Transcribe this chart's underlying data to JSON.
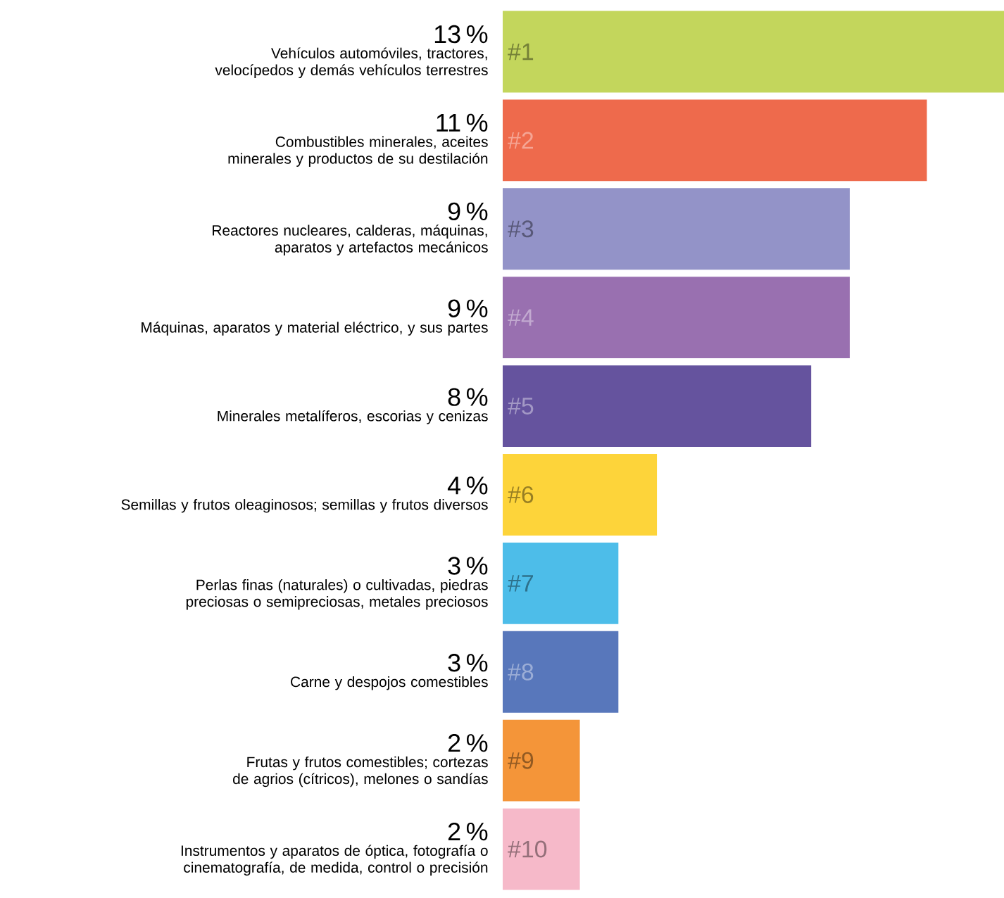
{
  "chart_data": {
    "type": "bar",
    "orientation": "horizontal",
    "categories": [
      "Vehículos automóviles, tractores, velocípedos y demás vehículos terrestres",
      "Combustibles minerales, aceites minerales y productos de su destilación",
      "Reactores nucleares, calderas, máquinas, aparatos y artefactos mecánicos",
      "Máquinas, aparatos y material eléctrico, y sus partes",
      "Minerales metalíferos, escorias y cenizas",
      "Semillas y frutos oleaginosos; semillas y frutos diversos",
      "Perlas finas (naturales) o cultivadas, piedras preciosas o semipreciosas, metales preciosos",
      "Carne y despojos comestibles",
      "Frutas y frutos comestibles; cortezas de agrios (cítricos), melones o sandías",
      "Instrumentos y aparatos de óptica, fotografía o cinematografía, de medida, control o precisión"
    ],
    "values": [
      13,
      11,
      9,
      9,
      8,
      4,
      3,
      3,
      2,
      2
    ],
    "value_labels": [
      "13 %",
      "11 %",
      "9 %",
      "9 %",
      "8 %",
      "4 %",
      "3 %",
      "3 %",
      "2 %",
      "2 %"
    ],
    "colors": [
      "#c3d65c",
      "#ee6a4c",
      "#9393c8",
      "#9970b0",
      "#65539e",
      "#fdd43a",
      "#4dbde9",
      "#5877bb",
      "#f49539",
      "#f6b9c9"
    ],
    "annotations": [
      "#1",
      "#2",
      "#3",
      "#4",
      "#5",
      "#6",
      "#7",
      "#8",
      "#9",
      "#10"
    ]
  }
}
